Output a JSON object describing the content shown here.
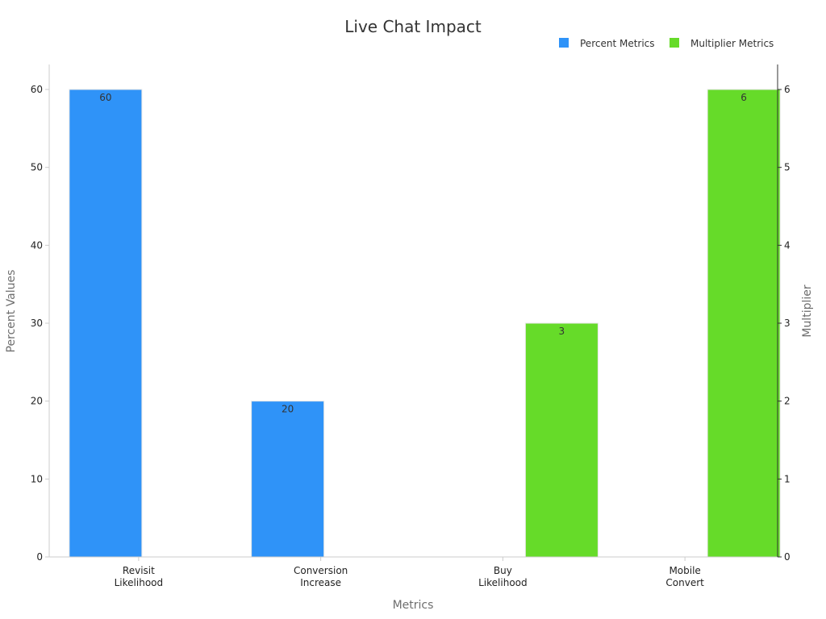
{
  "chart_data": {
    "type": "bar",
    "title": "Live Chat Impact",
    "xlabel": "Metrics",
    "ylabel": "Percent Values",
    "y2label": "Multiplier",
    "categories": [
      [
        "Revisit",
        "Likelihood"
      ],
      [
        "Conversion",
        "Increase"
      ],
      [
        "Buy",
        "Likelihood"
      ],
      [
        "Mobile",
        "Convert"
      ]
    ],
    "ylim": [
      0,
      60
    ],
    "y2lim": [
      0,
      6
    ],
    "yticks": [
      0,
      10,
      20,
      30,
      40,
      50,
      60
    ],
    "y2ticks": [
      0,
      1,
      2,
      3,
      4,
      5,
      6
    ],
    "grid": false,
    "legend_position": "top-right",
    "series": [
      {
        "name": "Percent Metrics",
        "axis": "left",
        "color": "#2f93f8",
        "values": [
          60,
          20,
          null,
          null
        ]
      },
      {
        "name": "Multiplier Metrics",
        "axis": "right",
        "color": "#66db29",
        "values": [
          null,
          null,
          3,
          6
        ]
      }
    ]
  }
}
